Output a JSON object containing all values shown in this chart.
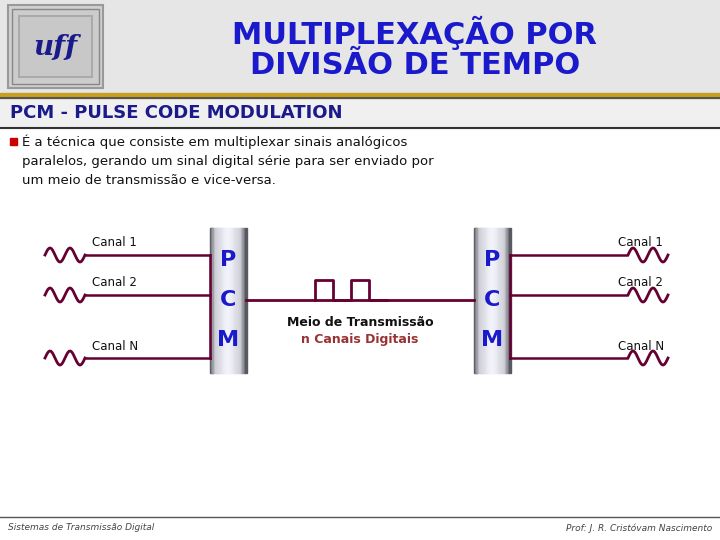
{
  "title_line1": "MULTIPLEXAÇÃO POR",
  "title_line2": "DIVISÃO DE TEMPO",
  "title_color": "#1a1acc",
  "subtitle": "PCM - PULSE CODE MODULATION",
  "subtitle_color": "#1a1a8a",
  "body_lines": [
    "É a técnica que consiste em multiplexar sinais analógicos",
    "paralelos, gerando um sinal digital série para ser enviado por",
    "um meio de transmissão e vice-versa."
  ],
  "bullet_color": "#cc0000",
  "body_color": "#111111",
  "background_color": "#ffffff",
  "header_bg": "#e8e8e8",
  "gold_line_color": "#c8a020",
  "canal_color": "#660033",
  "pcm_color": "#1a1acc",
  "transmit_label1": "Meio de Transmissão",
  "transmit_label2": "n Canais Digitais",
  "transmit_color1": "#111111",
  "transmit_color2": "#993333",
  "footer_left": "Sistemas de Transmissão Digital",
  "footer_right": "Prof: J. R. Cristóvam Nascimento",
  "footer_color": "#444444",
  "canal_labels": [
    "Canal 1",
    "Canal 2",
    "Canal N"
  ]
}
